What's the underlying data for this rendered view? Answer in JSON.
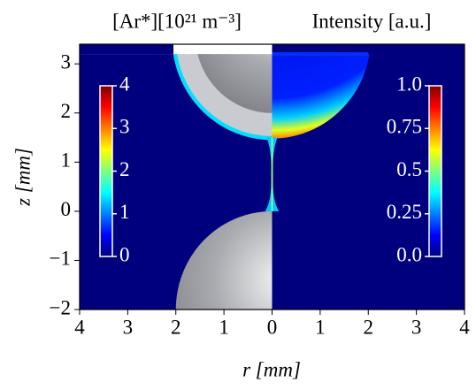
{
  "chart_data": {
    "type": "heatmap",
    "xlabel": "r [mm]",
    "ylabel": "z [mm]",
    "xlim": [
      -4,
      4
    ],
    "xticks": [
      {
        "value": -4,
        "label": "4"
      },
      {
        "value": -3,
        "label": "3"
      },
      {
        "value": -2,
        "label": "2"
      },
      {
        "value": -1,
        "label": "1"
      },
      0,
      1,
      2,
      3,
      4
    ],
    "ylim": [
      -2,
      3.4
    ],
    "yticks": [
      {
        "value": -2,
        "label": "−2"
      },
      {
        "value": -1,
        "label": "−1"
      },
      0,
      1,
      2,
      3
    ],
    "colormap": "jet",
    "colorbars": [
      {
        "title": "[Ar*][10²¹ m⁻³]",
        "side": "left",
        "lim": [
          0,
          4
        ],
        "ticks": [
          0,
          1,
          2,
          3,
          4
        ]
      },
      {
        "title": "Intensity [a.u.]",
        "side": "right",
        "lim": [
          0,
          1
        ],
        "ticks": [
          {
            "value": 0,
            "label": "0.0"
          },
          0.25,
          0.5,
          0.75,
          {
            "value": 1,
            "label": "1.0"
          }
        ]
      }
    ]
  }
}
